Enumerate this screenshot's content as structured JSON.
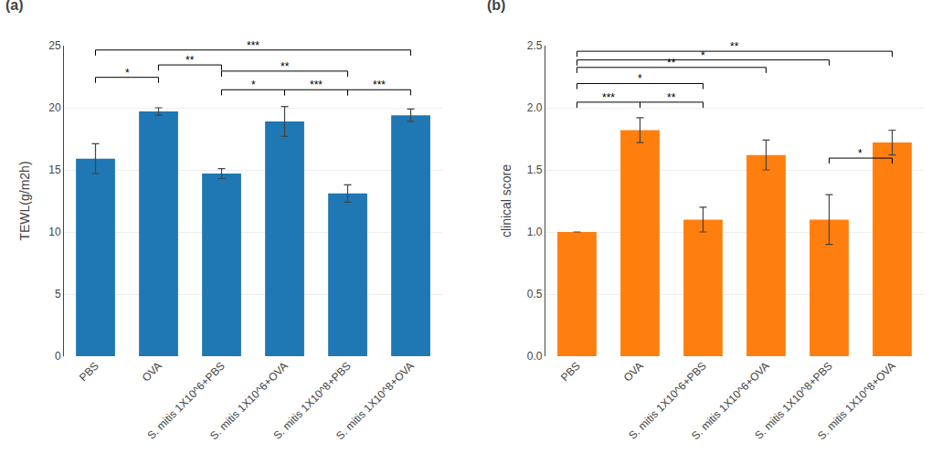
{
  "chart_data": [
    {
      "type": "bar",
      "title": "(a)",
      "categories": [
        "PBS",
        "OVA",
        "S. mitis 1X10^6+PBS",
        "S. mitis 1X10^6+OVA",
        "S. mitis 1X10^8+PBS",
        "S. mitis 1X10^8+OVA"
      ],
      "values": [
        15.9,
        19.7,
        14.7,
        18.9,
        13.1,
        19.4
      ],
      "errors": [
        1.2,
        0.3,
        0.4,
        1.2,
        0.7,
        0.5
      ],
      "ylabel": "TEWL(g/m2h)",
      "ylim": [
        0,
        25
      ],
      "yticks": [
        0,
        5,
        10,
        15,
        20,
        25
      ],
      "significance": [
        {
          "bars": [
            0,
            1
          ],
          "label": "*",
          "y": 22.0
        },
        {
          "bars": [
            1,
            2
          ],
          "label": "**",
          "y": 23.0
        },
        {
          "bars": [
            0,
            5
          ],
          "label": "***",
          "y": 24.2
        },
        {
          "bars": [
            2,
            3
          ],
          "label": "*",
          "y": 21.0
        },
        {
          "bars": [
            2,
            4
          ],
          "label": "**",
          "y": 22.5
        },
        {
          "bars": [
            3,
            4
          ],
          "label": "***",
          "y": 21.0
        },
        {
          "bars": [
            4,
            5
          ],
          "label": "***",
          "y": 21.0
        }
      ]
    },
    {
      "type": "bar",
      "title": "(b)",
      "categories": [
        "PBS",
        "OVA",
        "S. mitis 1X10^6+PBS",
        "S. mitis 1X10^6+OVA",
        "S. mitis 1X10^8+PBS",
        "S. mitis 1X10^8+OVA"
      ],
      "values": [
        1.0,
        1.82,
        1.1,
        1.62,
        1.1,
        1.72
      ],
      "errors": [
        0.0,
        0.1,
        0.1,
        0.12,
        0.2,
        0.1
      ],
      "ylabel": "clinical score",
      "ylim": [
        0,
        2.5
      ],
      "yticks": [
        {
          "value": 0,
          "label": "0.0"
        },
        0.5,
        {
          "value": 1,
          "label": "1.0"
        },
        1.5,
        {
          "value": 2,
          "label": "2.0"
        },
        2.5
      ],
      "significance": [
        {
          "bars": [
            0,
            1
          ],
          "label": "***",
          "y": 2.0
        },
        {
          "bars": [
            1,
            2
          ],
          "label": "**",
          "y": 2.0
        },
        {
          "bars": [
            0,
            2
          ],
          "label": "*",
          "y": 2.15
        },
        {
          "bars": [
            0,
            3
          ],
          "label": "**",
          "y": 2.28
        },
        {
          "bars": [
            0,
            5
          ],
          "label": "**",
          "y": 2.41
        },
        {
          "bars": [
            0,
            4
          ],
          "label": "*",
          "y": 2.34
        },
        {
          "bars": [
            4,
            5
          ],
          "label": "*",
          "y": 1.55
        }
      ]
    }
  ]
}
